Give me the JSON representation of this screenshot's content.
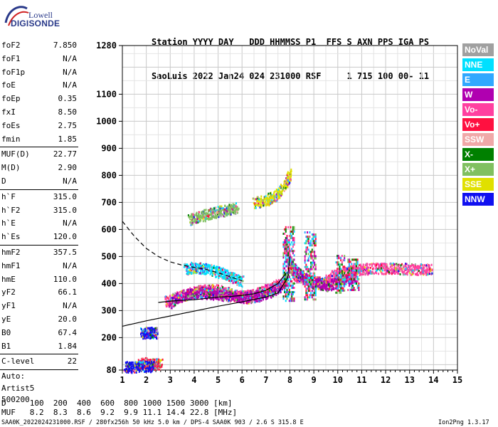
{
  "logo": {
    "top": "Lowell",
    "bottom": "DIGISONDE"
  },
  "header": {
    "line1": "Station YYYY DAY   DDD HHMMSS P1  FFS S AXN PPS IGA PS",
    "line2": "SaoLuis 2022 Jan24 024 231000 RSF     1 715 100 00- 11"
  },
  "params_a": [
    {
      "k": "foF2",
      "v": "7.850"
    },
    {
      "k": "foF1",
      "v": "N/A"
    },
    {
      "k": "foF1p",
      "v": "N/A"
    },
    {
      "k": "foE",
      "v": "N/A"
    },
    {
      "k": "foEp",
      "v": "0.35"
    },
    {
      "k": "fxI",
      "v": "8.50"
    },
    {
      "k": "foEs",
      "v": "2.75"
    },
    {
      "k": "fmin",
      "v": "1.85"
    }
  ],
  "params_b": [
    {
      "k": "MUF(D)",
      "v": "22.77"
    },
    {
      "k": "M(D)",
      "v": "2.90"
    },
    {
      "k": "D",
      "v": "N/A"
    }
  ],
  "params_c": [
    {
      "k": "h`F",
      "v": "315.0"
    },
    {
      "k": "h`F2",
      "v": "315.0"
    },
    {
      "k": "h`E",
      "v": "N/A"
    },
    {
      "k": "h`Es",
      "v": "120.0"
    }
  ],
  "params_d": [
    {
      "k": "hmF2",
      "v": "357.5"
    },
    {
      "k": "hmF1",
      "v": "N/A"
    },
    {
      "k": "hmE",
      "v": "110.0"
    },
    {
      "k": "yF2",
      "v": "66.1"
    },
    {
      "k": "yF1",
      "v": "N/A"
    },
    {
      "k": "yE",
      "v": "20.0"
    },
    {
      "k": "B0",
      "v": "67.4"
    },
    {
      "k": "B1",
      "v": "1.84"
    }
  ],
  "params_e": [
    {
      "k": "C-level",
      "v": "22"
    }
  ],
  "autoscale": [
    "Auto:",
    "Artist5",
    "500200"
  ],
  "legend": [
    {
      "label": "NoVal",
      "color": "#a0a0a0"
    },
    {
      "label": "NNE",
      "color": "#00e0ff"
    },
    {
      "label": "E",
      "color": "#30a8ff"
    },
    {
      "label": "W",
      "color": "#b000b0"
    },
    {
      "label": "Vo-",
      "color": "#ff40a0"
    },
    {
      "label": "Vo+",
      "color": "#ff1040"
    },
    {
      "label": "SSW",
      "color": "#f0a8a8"
    },
    {
      "label": "X-",
      "color": "#008000"
    },
    {
      "label": "X+",
      "color": "#80c060"
    },
    {
      "label": "SSE",
      "color": "#e0e000"
    },
    {
      "label": "NNW",
      "color": "#1010f0"
    }
  ],
  "footer": {
    "d_line": "D     100  200  400  600  800 1000 1500 3000 [km]",
    "muf_line": "MUF   8.2  8.3  8.6  9.2  9.9 11.1 14.4 22.8 [MHz]",
    "file_line": "SAA0K_2022024231000.RSF / 280fx256h 50 kHz 5.0 km / DPS-4 SAA0K 903 / 2.6 S 315.8 E",
    "version": "Ion2Png 1.3.17"
  },
  "chart_data": {
    "type": "scatter",
    "x_ticks": [
      "1",
      "2",
      "3",
      "4",
      "5",
      "6",
      "7",
      "8",
      "9",
      "10",
      "11",
      "12",
      "13",
      "14",
      "15"
    ],
    "y_ticks": [
      "80",
      "200",
      "300",
      "400",
      "500",
      "600",
      "700",
      "800",
      "900",
      "1000",
      "1100",
      "1280"
    ],
    "xlim": [
      1,
      15
    ],
    "ylim": [
      80,
      1280
    ],
    "grid": true,
    "traces": [
      {
        "color_key": "Vo-",
        "x": [
          2.8,
          3.2,
          3.6,
          4.0,
          4.4,
          4.8,
          5.2,
          5.6,
          6.0,
          6.5,
          7.0,
          7.4,
          7.8
        ],
        "y": [
          335,
          350,
          360,
          372,
          378,
          380,
          375,
          360,
          355,
          362,
          380,
          395,
          410
        ]
      },
      {
        "color_key": "W",
        "x": [
          3.0,
          3.4,
          3.8,
          4.2,
          4.6,
          5.0,
          5.4,
          5.8,
          6.2,
          6.6,
          7.0,
          7.5,
          7.9
        ],
        "y": [
          330,
          355,
          365,
          368,
          366,
          362,
          358,
          352,
          350,
          355,
          365,
          385,
          420
        ]
      },
      {
        "color_key": "NNE",
        "x": [
          3.6,
          4.0,
          4.4,
          4.8,
          5.2,
          5.6,
          6.0
        ],
        "y": [
          455,
          462,
          458,
          450,
          440,
          425,
          410
        ]
      },
      {
        "color_key": "X+",
        "x": [
          3.8,
          4.2,
          4.6,
          5.0,
          5.4,
          5.8
        ],
        "y": [
          638,
          650,
          660,
          668,
          675,
          685
        ]
      },
      {
        "color_key": "SSE",
        "x": [
          6.5,
          7.0,
          7.4,
          7.8,
          8.0
        ],
        "y": [
          700,
          710,
          730,
          770,
          810
        ]
      },
      {
        "color_key": "Vo-",
        "x": [
          7.8,
          8.0,
          8.2,
          8.6,
          9.0,
          9.4,
          9.8,
          10.2,
          10.6,
          11.0,
          11.4
        ],
        "y": [
          560,
          480,
          430,
          420,
          410,
          405,
          430,
          440,
          450,
          455,
          458
        ]
      },
      {
        "color_key": "W",
        "x": [
          8.0,
          8.4,
          8.8,
          9.2,
          9.6,
          10.0,
          10.4,
          10.8
        ],
        "y": [
          470,
          440,
          410,
          400,
          395,
          405,
          420,
          430
        ]
      },
      {
        "color_key": "Vo-",
        "x": [
          11.5,
          12.0,
          12.5,
          13.0,
          13.5,
          13.9
        ],
        "y": [
          460,
          458,
          458,
          456,
          455,
          455
        ]
      },
      {
        "color_key": "Vo+",
        "x": [
          1.7,
          2.0,
          2.3,
          2.6
        ],
        "y": [
          105,
          108,
          104,
          108
        ]
      },
      {
        "color_key": "NNW",
        "x": [
          1.1,
          1.4,
          1.7,
          2.0,
          2.3
        ],
        "y": [
          95,
          92,
          98,
          96,
          94
        ]
      },
      {
        "color_key": "NNW",
        "x": [
          1.8,
          2.0,
          2.2,
          2.4
        ],
        "y": [
          218,
          222,
          220,
          219
        ]
      }
    ],
    "lines": [
      {
        "name": "solid",
        "x": [
          1,
          2,
          3,
          4,
          5,
          6,
          7,
          7.5,
          7.9,
          8.0
        ],
        "y": [
          242,
          262,
          280,
          298,
          316,
          332,
          350,
          365,
          420,
          500
        ]
      },
      {
        "name": "profile",
        "x": [
          2.5,
          3.0,
          3.5,
          4.0,
          4.5,
          5.0,
          5.5,
          6.0,
          6.5,
          7.0,
          7.5,
          7.85
        ],
        "y": [
          330,
          335,
          338,
          340,
          345,
          350,
          352,
          356,
          362,
          375,
          400,
          440
        ]
      },
      {
        "name": "dashed",
        "x": [
          1.0,
          1.5,
          2.0,
          2.5,
          3.0,
          3.5,
          4.0,
          4.5,
          5.0,
          5.5,
          6.0
        ],
        "y": [
          630,
          575,
          530,
          500,
          480,
          468,
          460,
          452,
          440,
          425,
          410
        ]
      }
    ]
  }
}
